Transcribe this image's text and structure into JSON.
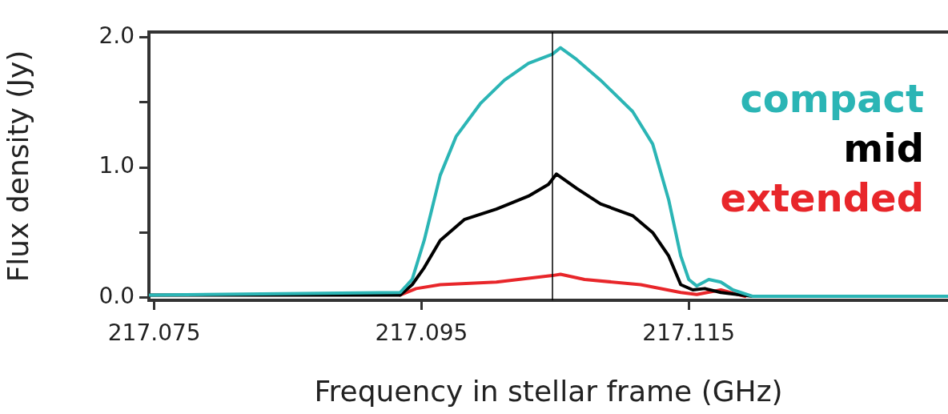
{
  "chart_data": {
    "type": "line",
    "xlabel": "Frequency in stellar frame (GHz)",
    "ylabel": "Flux density (Jy)",
    "xlim": [
      217.0746,
      217.1344
    ],
    "ylim": [
      -0.02,
      2.04
    ],
    "xticks": [
      217.075,
      217.095,
      217.115
    ],
    "yticks": [
      {
        "value": 0,
        "label": "0.0"
      },
      {
        "value": 0.5,
        "label": null
      },
      {
        "value": 1,
        "label": "1.0"
      },
      {
        "value": 1.5,
        "label": null
      },
      {
        "value": 2,
        "label": "2.0"
      }
    ],
    "grid": false,
    "legend": "top right",
    "marker": "none",
    "line_style": "solid",
    "ref_lines": [
      {
        "axis": "x",
        "value": 217.1048,
        "label": null,
        "color": "#000000"
      }
    ],
    "series": [
      {
        "name": "compact",
        "color": "#2bb5b5",
        "x": [
          217.0746,
          217.0934,
          217.0943,
          217.0952,
          217.0964,
          217.0976,
          217.0994,
          217.1012,
          217.103,
          217.1048,
          217.1054,
          217.1066,
          217.1084,
          217.1108,
          217.1123,
          217.1135,
          217.1144,
          217.115,
          217.1156,
          217.1165,
          217.1174,
          217.1183,
          217.1198,
          217.1344
        ],
        "values": [
          0.02,
          0.04,
          0.14,
          0.44,
          0.94,
          1.24,
          1.49,
          1.67,
          1.8,
          1.87,
          1.92,
          1.83,
          1.67,
          1.43,
          1.18,
          0.75,
          0.32,
          0.14,
          0.09,
          0.14,
          0.12,
          0.06,
          0.01,
          0.01
        ]
      },
      {
        "name": "mid",
        "color": "#000000",
        "x": [
          217.0746,
          217.0934,
          217.0943,
          217.0952,
          217.0964,
          217.0982,
          217.1006,
          217.103,
          217.1045,
          217.1051,
          217.1066,
          217.1084,
          217.1108,
          217.1123,
          217.1135,
          217.1144,
          217.1153,
          217.1162,
          217.1174,
          217.1198,
          217.1344
        ],
        "values": [
          0.02,
          0.02,
          0.1,
          0.23,
          0.44,
          0.6,
          0.68,
          0.78,
          0.87,
          0.95,
          0.84,
          0.72,
          0.63,
          0.5,
          0.32,
          0.1,
          0.06,
          0.07,
          0.04,
          0.01,
          0.01
        ]
      },
      {
        "name": "extended",
        "color": "#e8262a",
        "x": [
          217.0934,
          217.0946,
          217.0964,
          217.1006,
          217.1048,
          217.1054,
          217.1072,
          217.1114,
          217.1144,
          217.1156,
          217.1174,
          217.1192
        ],
        "values": [
          0.02,
          0.07,
          0.1,
          0.12,
          0.17,
          0.18,
          0.14,
          0.1,
          0.04,
          0.025,
          0.06,
          0.01
        ]
      }
    ]
  }
}
